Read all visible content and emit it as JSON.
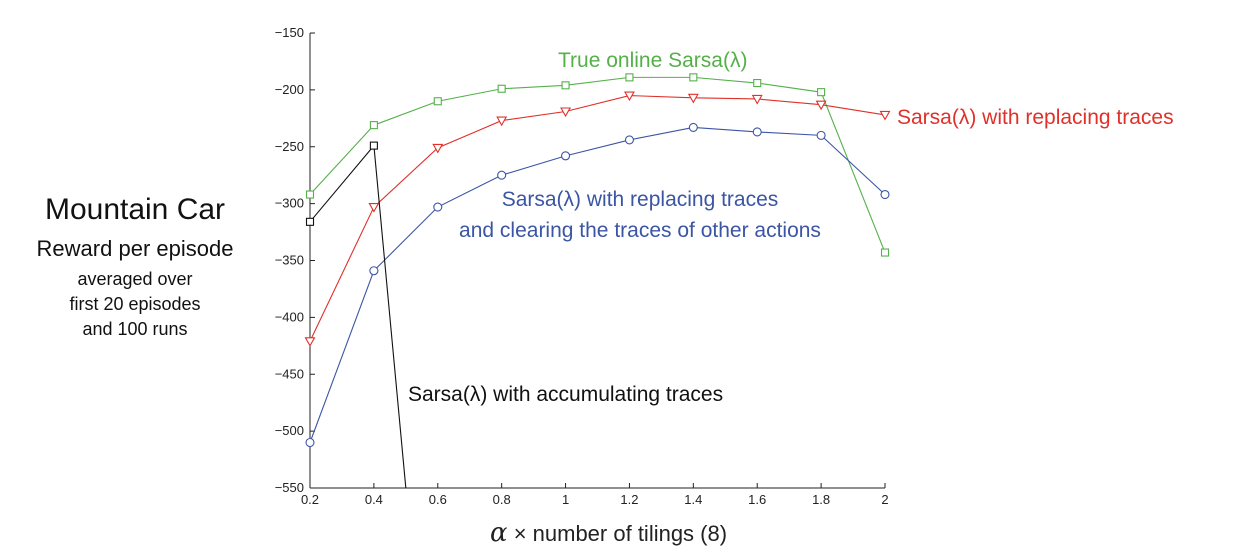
{
  "chart_data": {
    "type": "line",
    "side_text": {
      "title": "Mountain Car",
      "subtitle": "Reward per episode",
      "notes": [
        "averaged over",
        "first 20 episodes",
        "and 100 runs"
      ]
    },
    "xlabel": {
      "symbol": "α",
      "text": "× number of tilings (8)"
    },
    "xlim": [
      0.2,
      2.0
    ],
    "ylim": [
      -550,
      -150
    ],
    "xticks": [
      "0.2",
      "0.4",
      "0.6",
      "0.8",
      "1",
      "1.2",
      "1.4",
      "1.6",
      "1.8",
      "2"
    ],
    "yticks": [
      "−150",
      "−200",
      "−250",
      "−300",
      "−350",
      "−400",
      "−450",
      "−500",
      "−550"
    ],
    "series": [
      {
        "name": "True online Sarsa(λ)",
        "color": "#55b04a",
        "marker": "square",
        "x": [
          0.2,
          0.4,
          0.6,
          0.8,
          1.0,
          1.2,
          1.4,
          1.6,
          1.8,
          2.0
        ],
        "y": [
          -292,
          -231,
          -210,
          -199,
          -196,
          -189,
          -189,
          -194,
          -202,
          -343
        ]
      },
      {
        "name": "Sarsa(λ) with replacing traces",
        "color": "#e0302a",
        "marker": "triangle-down",
        "x": [
          0.2,
          0.4,
          0.6,
          0.8,
          1.0,
          1.2,
          1.4,
          1.6,
          1.8,
          2.0
        ],
        "y": [
          -421,
          -303,
          -251,
          -227,
          -219,
          -205,
          -207,
          -208,
          -213,
          -222
        ]
      },
      {
        "name": "Sarsa(λ) with replacing traces and clearing the traces of other actions",
        "label_lines": [
          "Sarsa(λ) with replacing traces",
          "and clearing the traces of other actions"
        ],
        "color": "#3b55a4",
        "marker": "circle",
        "x": [
          0.2,
          0.4,
          0.6,
          0.8,
          1.0,
          1.2,
          1.4,
          1.6,
          1.8,
          2.0
        ],
        "y": [
          -510,
          -359,
          -303,
          -275,
          -258,
          -244,
          -233,
          -237,
          -240,
          -292
        ]
      },
      {
        "name": "Sarsa(λ) with accumulating traces",
        "color": "#111111",
        "marker": "square",
        "x": [
          0.2,
          0.4,
          0.5
        ],
        "y": [
          -316,
          -249,
          -550
        ]
      }
    ]
  }
}
